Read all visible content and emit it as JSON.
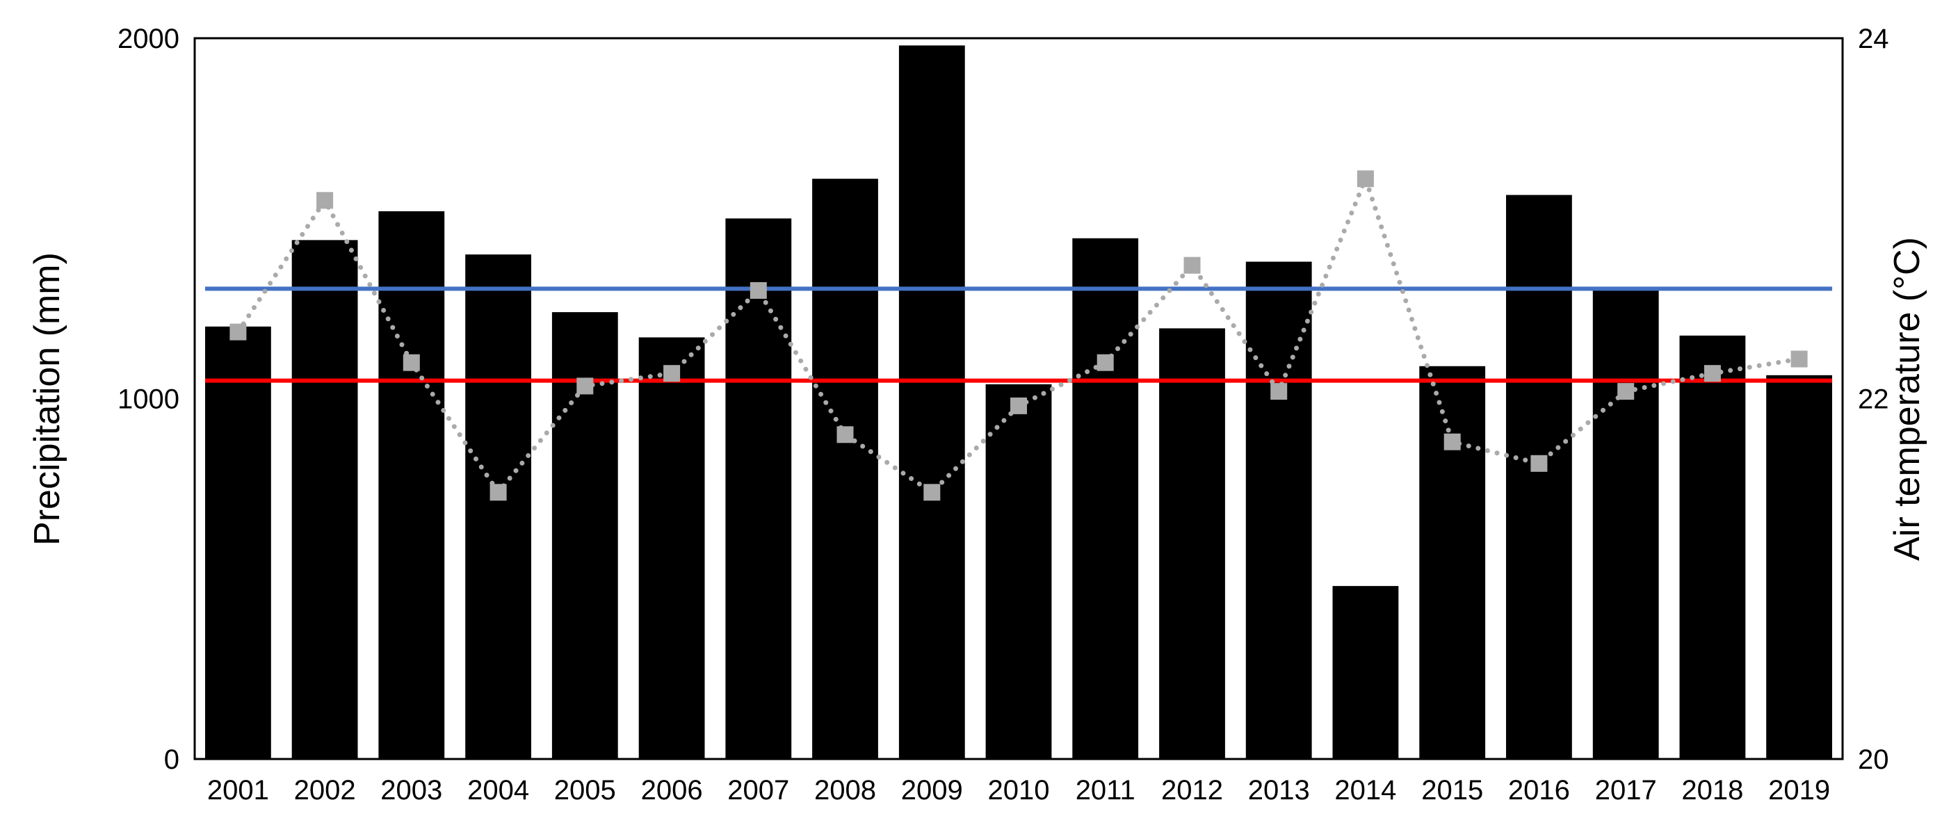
{
  "chart_data": {
    "type": "bar",
    "title": "",
    "categories": [
      "2001",
      "2002",
      "2003",
      "2004",
      "2005",
      "2006",
      "2007",
      "2008",
      "2009",
      "2010",
      "2011",
      "2012",
      "2013",
      "2014",
      "2015",
      "2016",
      "2017",
      "2018",
      "2019"
    ],
    "ylabel": "Precipitation (mm)",
    "y2label": "Air temperature (°C)",
    "ylim": [
      0,
      2000
    ],
    "y2lim": [
      20,
      24
    ],
    "yticks": [
      "0",
      "1000",
      "2000"
    ],
    "y2ticks": [
      "20",
      "22",
      "24"
    ],
    "series": [
      {
        "type": "bar",
        "axis": "left",
        "color": "#000000",
        "values": [
          1200,
          1440,
          1520,
          1400,
          1240,
          1170,
          1500,
          1610,
          1980,
          1040,
          1445,
          1195,
          1380,
          480,
          1090,
          1565,
          1300,
          1175,
          1065
        ]
      },
      {
        "type": "line",
        "axis": "right",
        "style": "dotted",
        "marker": "square",
        "color": "#aaaaaa",
        "values": [
          22.37,
          23.1,
          22.2,
          21.48,
          22.07,
          22.14,
          22.6,
          21.8,
          21.48,
          21.96,
          22.2,
          22.74,
          22.04,
          23.22,
          21.76,
          21.64,
          22.04,
          22.14,
          22.22
        ]
      },
      {
        "type": "hline",
        "axis": "left",
        "color": "#4472c4",
        "value": 1305
      },
      {
        "type": "hline",
        "axis": "left",
        "color": "#ff0000",
        "value": 1050
      }
    ],
    "grid": false,
    "legend": "none"
  }
}
